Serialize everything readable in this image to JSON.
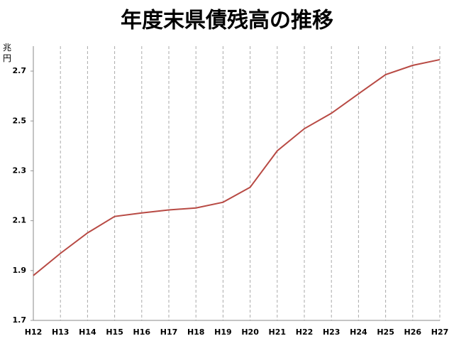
{
  "chart_data": {
    "type": "line",
    "title": "年度末県債残高の推移",
    "y_label": "兆円",
    "categories": [
      "H12",
      "H13",
      "H14",
      "H15",
      "H16",
      "H17",
      "H18",
      "H19",
      "H20",
      "H21",
      "H22",
      "H23",
      "H24",
      "H25",
      "H26",
      "H27"
    ],
    "values": [
      1.88,
      1.969,
      2.051,
      2.117,
      2.131,
      2.143,
      2.151,
      2.174,
      2.234,
      2.38,
      2.469,
      2.531,
      2.609,
      2.686,
      2.723,
      2.746
    ],
    "color": "#b84a44",
    "ylim": [
      1.7,
      2.8
    ],
    "yticks": [
      1.7,
      1.9,
      2.1,
      2.3,
      2.5,
      2.7
    ],
    "grid": true
  }
}
